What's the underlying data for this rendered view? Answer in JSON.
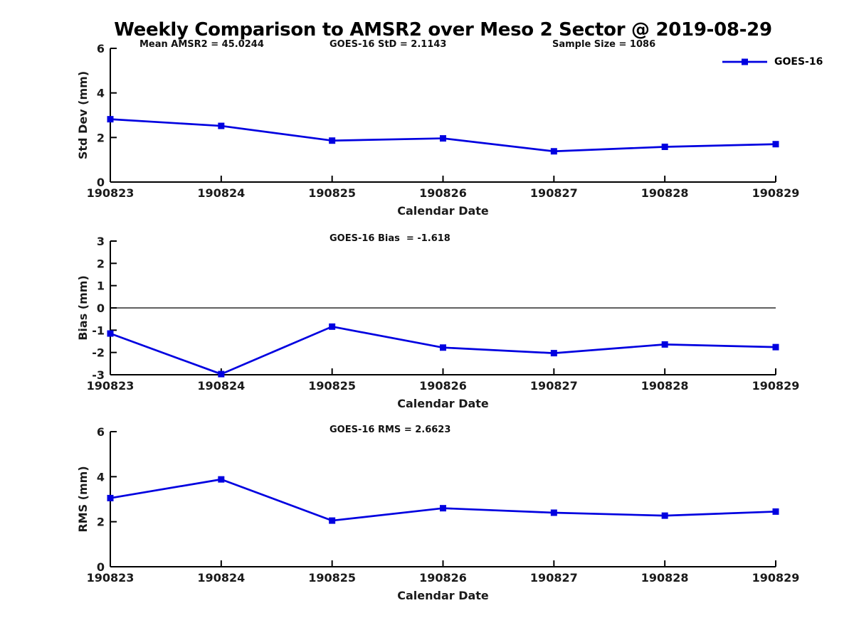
{
  "title": "Weekly Comparison to AMSR2 over Meso 2 Sector @ 2019-08-29",
  "colors": {
    "series": "#0000e0",
    "axis": "#000000",
    "text": "#1a1a1a"
  },
  "legend": {
    "label": "GOES-16",
    "position": "top-right"
  },
  "chart_data": [
    {
      "type": "line",
      "name": "std-dev",
      "ylabel": "Std Dev (mm)",
      "xlabel": "Calendar Date",
      "ylim": [
        0,
        6
      ],
      "yticks": [
        0,
        2,
        4,
        6
      ],
      "grid": false,
      "categories": [
        "190823",
        "190824",
        "190825",
        "190826",
        "190827",
        "190828",
        "190829"
      ],
      "series": [
        {
          "name": "GOES-16",
          "color": "#0000e0",
          "marker": "square",
          "values": [
            2.82,
            2.52,
            1.86,
            1.96,
            1.38,
            1.58,
            1.7
          ]
        }
      ],
      "annotations": [
        "Mean AMSR2 = 45.0244",
        "GOES-16 StD = 2.1143",
        "Sample Size = 1086"
      ]
    },
    {
      "type": "line",
      "name": "bias",
      "ylabel": "Bias (mm)",
      "xlabel": "Calendar Date",
      "ylim": [
        -3,
        3
      ],
      "yticks": [
        -3,
        -2,
        -1,
        0,
        1,
        2,
        3
      ],
      "zero_line": true,
      "grid": false,
      "categories": [
        "190823",
        "190824",
        "190825",
        "190826",
        "190827",
        "190828",
        "190829"
      ],
      "series": [
        {
          "name": "GOES-16",
          "color": "#0000e0",
          "marker": "square",
          "values": [
            -1.15,
            -2.97,
            -0.84,
            -1.78,
            -2.03,
            -1.64,
            -1.76
          ]
        }
      ],
      "annotations": [
        "GOES-16 Bias  = -1.618"
      ]
    },
    {
      "type": "line",
      "name": "rms",
      "ylabel": "RMS (mm)",
      "xlabel": "Calendar Date",
      "ylim": [
        0,
        6
      ],
      "yticks": [
        0,
        2,
        4,
        6
      ],
      "grid": false,
      "categories": [
        "190823",
        "190824",
        "190825",
        "190826",
        "190827",
        "190828",
        "190829"
      ],
      "series": [
        {
          "name": "GOES-16",
          "color": "#0000e0",
          "marker": "square",
          "values": [
            3.05,
            3.88,
            2.05,
            2.6,
            2.4,
            2.27,
            2.45
          ]
        }
      ],
      "annotations": [
        "GOES-16 RMS = 2.6623"
      ]
    }
  ]
}
